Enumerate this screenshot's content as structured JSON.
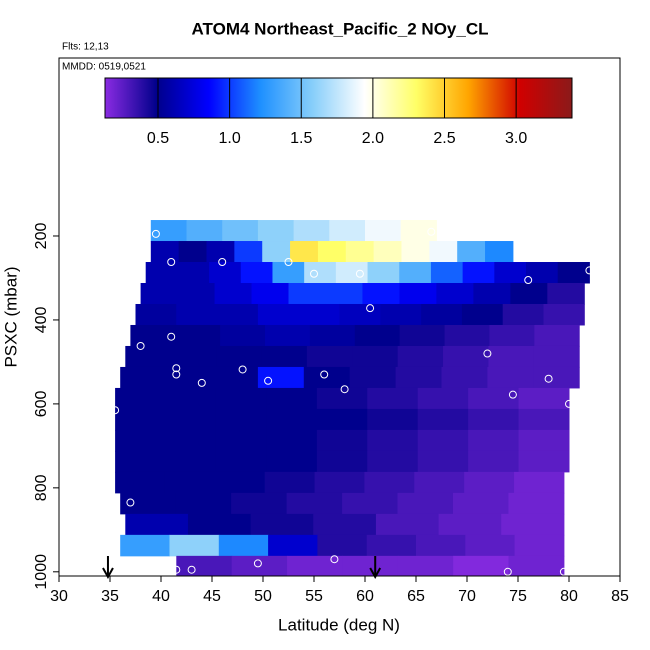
{
  "chart_data": {
    "type": "curtain",
    "title": "ATOM4 Northeast_Pacific_2 NOy_CL",
    "flights": "Flts: 12,13",
    "dates": "MMDD: 0519,0521",
    "x_label": "Latitude (deg N)",
    "y_label": "PSXC (mbar)",
    "xlim": [
      30,
      85
    ],
    "xticks": [
      30,
      35,
      40,
      45,
      50,
      55,
      60,
      65,
      70,
      75,
      80,
      85
    ],
    "ylim": [
      1010,
      -224
    ],
    "yticks": [
      200,
      400,
      600,
      800,
      1000
    ],
    "colorbar": {
      "lim": [
        0.13,
        3.39
      ],
      "ticks": [
        0.5,
        1.0,
        1.5,
        2.0,
        2.5,
        3.0
      ],
      "ticks_labels": [
        "0.5",
        "1.0",
        "1.5",
        "2.0",
        "2.5",
        "3.0"
      ],
      "colors": [
        "#8a2be2",
        "#00008b",
        "#0000ff",
        "#1e90ff",
        "#87cefa",
        "#ffffff",
        "#ffff66",
        "#ffa500",
        "#d00000",
        "#8b1a1a"
      ]
    },
    "rows": [
      {
        "p": [
          162,
          212
        ],
        "lat": [
          39,
          67
        ],
        "values": [
          1.3,
          1.4,
          1.5,
          1.6,
          1.7,
          1.8,
          1.9,
          2.0
        ]
      },
      {
        "p": [
          212,
          262
        ],
        "lat": [
          39,
          74.5
        ],
        "values": [
          0.6,
          0.5,
          0.6,
          1.0,
          1.6,
          2.4,
          2.3,
          2.2,
          2.1,
          2.0,
          1.9,
          1.4,
          1.2
        ]
      },
      {
        "p": [
          262,
          312
        ],
        "lat": [
          38.5,
          82
        ],
        "values": [
          0.6,
          0.6,
          0.7,
          0.9,
          1.3,
          1.7,
          1.8,
          1.6,
          1.4,
          1.1,
          0.9,
          0.7,
          0.6,
          0.5
        ]
      },
      {
        "p": [
          312,
          362
        ],
        "lat": [
          38,
          81.5
        ],
        "values": [
          0.6,
          0.6,
          0.7,
          0.8,
          1.0,
          1.0,
          0.9,
          0.8,
          0.7,
          0.6,
          0.5,
          0.4
        ]
      },
      {
        "p": [
          362,
          412
        ],
        "lat": [
          37.5,
          81.5
        ],
        "values": [
          0.55,
          0.6,
          0.6,
          0.7,
          0.7,
          0.65,
          0.6,
          0.55,
          0.5,
          0.4,
          0.35
        ]
      },
      {
        "p": [
          412,
          462
        ],
        "lat": [
          37,
          81
        ],
        "values": [
          0.5,
          0.5,
          0.55,
          0.6,
          0.55,
          0.5,
          0.45,
          0.4,
          0.35,
          0.3
        ]
      },
      {
        "p": [
          462,
          512
        ],
        "lat": [
          36.5,
          81
        ],
        "values": [
          0.5,
          0.5,
          0.5,
          0.5,
          0.45,
          0.45,
          0.4,
          0.35,
          0.3,
          0.3
        ]
      },
      {
        "p": [
          512,
          562
        ],
        "lat": [
          36,
          81
        ],
        "values": [
          0.5,
          0.5,
          0.5,
          0.9,
          0.5,
          0.45,
          0.4,
          0.35,
          0.3,
          0.3
        ]
      },
      {
        "p": [
          562,
          612
        ],
        "lat": [
          35.5,
          80
        ],
        "values": [
          0.5,
          0.5,
          0.5,
          0.5,
          0.45,
          0.4,
          0.35,
          0.3,
          0.25
        ]
      },
      {
        "p": [
          612,
          662
        ],
        "lat": [
          35.5,
          80
        ],
        "values": [
          0.5,
          0.5,
          0.5,
          0.5,
          0.5,
          0.45,
          0.4,
          0.35,
          0.3
        ]
      },
      {
        "p": [
          662,
          712
        ],
        "lat": [
          35.5,
          80
        ],
        "values": [
          0.5,
          0.5,
          0.5,
          0.5,
          0.45,
          0.4,
          0.35,
          0.3,
          0.25
        ]
      },
      {
        "p": [
          712,
          762
        ],
        "lat": [
          35.5,
          80
        ],
        "values": [
          0.5,
          0.5,
          0.5,
          0.5,
          0.45,
          0.4,
          0.35,
          0.3,
          0.25
        ]
      },
      {
        "p": [
          762,
          812
        ],
        "lat": [
          35.5,
          79.5
        ],
        "values": [
          0.5,
          0.5,
          0.5,
          0.45,
          0.4,
          0.35,
          0.3,
          0.25,
          0.2
        ]
      },
      {
        "p": [
          812,
          862
        ],
        "lat": [
          36,
          79.5
        ],
        "values": [
          0.5,
          0.5,
          0.45,
          0.4,
          0.35,
          0.3,
          0.25,
          0.2
        ]
      },
      {
        "p": [
          862,
          912
        ],
        "lat": [
          36.5,
          79.5
        ],
        "values": [
          0.6,
          0.5,
          0.45,
          0.4,
          0.3,
          0.25,
          0.2
        ]
      },
      {
        "p": [
          912,
          962
        ],
        "lat": [
          36,
          79.5
        ],
        "values": [
          1.3,
          1.6,
          1.2,
          0.7,
          0.4,
          0.35,
          0.3,
          0.25,
          0.2
        ]
      },
      {
        "p": [
          962,
          1010
        ],
        "lat": [
          41.5,
          79.5
        ],
        "values": [
          0.3,
          0.25,
          0.2,
          0.2,
          0.2,
          0.15,
          0.2
        ]
      }
    ],
    "points": {
      "lat": [
        39.5,
        66.5,
        41,
        46,
        52.5,
        55,
        59.5,
        76,
        82,
        60.5,
        41,
        38,
        72,
        41.5,
        41.5,
        48,
        44,
        50.5,
        56,
        58,
        78,
        74.5,
        80,
        35.5,
        37,
        41.5,
        43,
        49.5,
        57,
        74,
        79.5
      ],
      "pressure": [
        195,
        190,
        262,
        262,
        262,
        290,
        290,
        305,
        282,
        372,
        440,
        462,
        480,
        515,
        530,
        518,
        550,
        545,
        530,
        565,
        540,
        578,
        600,
        615,
        835,
        995,
        995,
        980,
        970,
        1000,
        1000
      ]
    },
    "arrows": [
      34.8,
      61
    ]
  }
}
